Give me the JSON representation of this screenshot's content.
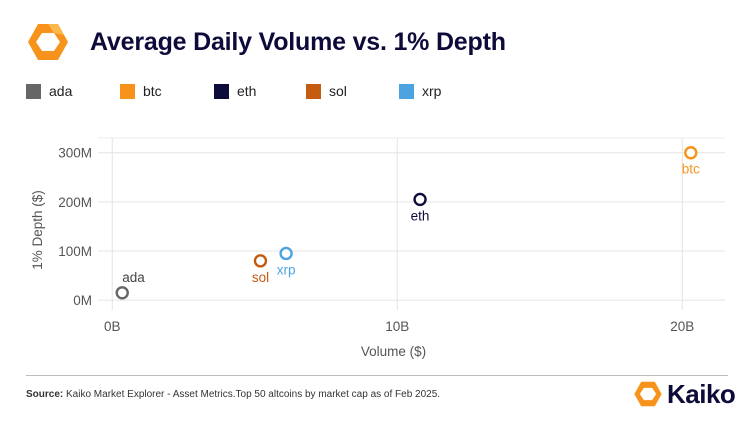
{
  "header": {
    "title": "Average Daily Volume vs. 1% Depth",
    "logo_icon": "kaiko-logo-icon"
  },
  "chart_data": {
    "type": "scatter",
    "title": "Average Daily Volume vs. 1% Depth",
    "xlabel": "Volume ($)",
    "ylabel": "1% Depth ($)",
    "xlim": [
      -500000000,
      21500000000
    ],
    "ylim": [
      -20000000,
      330000000
    ],
    "x_ticks": [
      {
        "value": 0,
        "label": "0B"
      },
      {
        "value": 10000000000,
        "label": "10B"
      },
      {
        "value": 20000000000,
        "label": "20B"
      }
    ],
    "y_ticks": [
      {
        "value": 0,
        "label": "0M"
      },
      {
        "value": 100000000,
        "label": "100M"
      },
      {
        "value": 200000000,
        "label": "200M"
      },
      {
        "value": 300000000,
        "label": "300M"
      }
    ],
    "grid": true,
    "legend_position": "top-left",
    "series": [
      {
        "name": "ada",
        "color": "#666666",
        "x": 350000000,
        "y": 15000000,
        "label_position": "above-right"
      },
      {
        "name": "btc",
        "color": "#f7931a",
        "x": 20300000000,
        "y": 300000000,
        "label_position": "below"
      },
      {
        "name": "eth",
        "color": "#0d0b3a",
        "x": 10800000000,
        "y": 205000000,
        "label_position": "below"
      },
      {
        "name": "sol",
        "color": "#c55a11",
        "x": 5200000000,
        "y": 80000000,
        "label_position": "below"
      },
      {
        "name": "xrp",
        "color": "#4da3e0",
        "x": 6100000000,
        "y": 95000000,
        "label_position": "below"
      }
    ]
  },
  "footer": {
    "source_label": "Source:",
    "source_text": " Kaiko Market Explorer - Asset Metrics.Top 50 altcoins by market cap as of Feb 2025.",
    "brand_name": "Kaiko",
    "brand_icon": "kaiko-logo-icon"
  }
}
